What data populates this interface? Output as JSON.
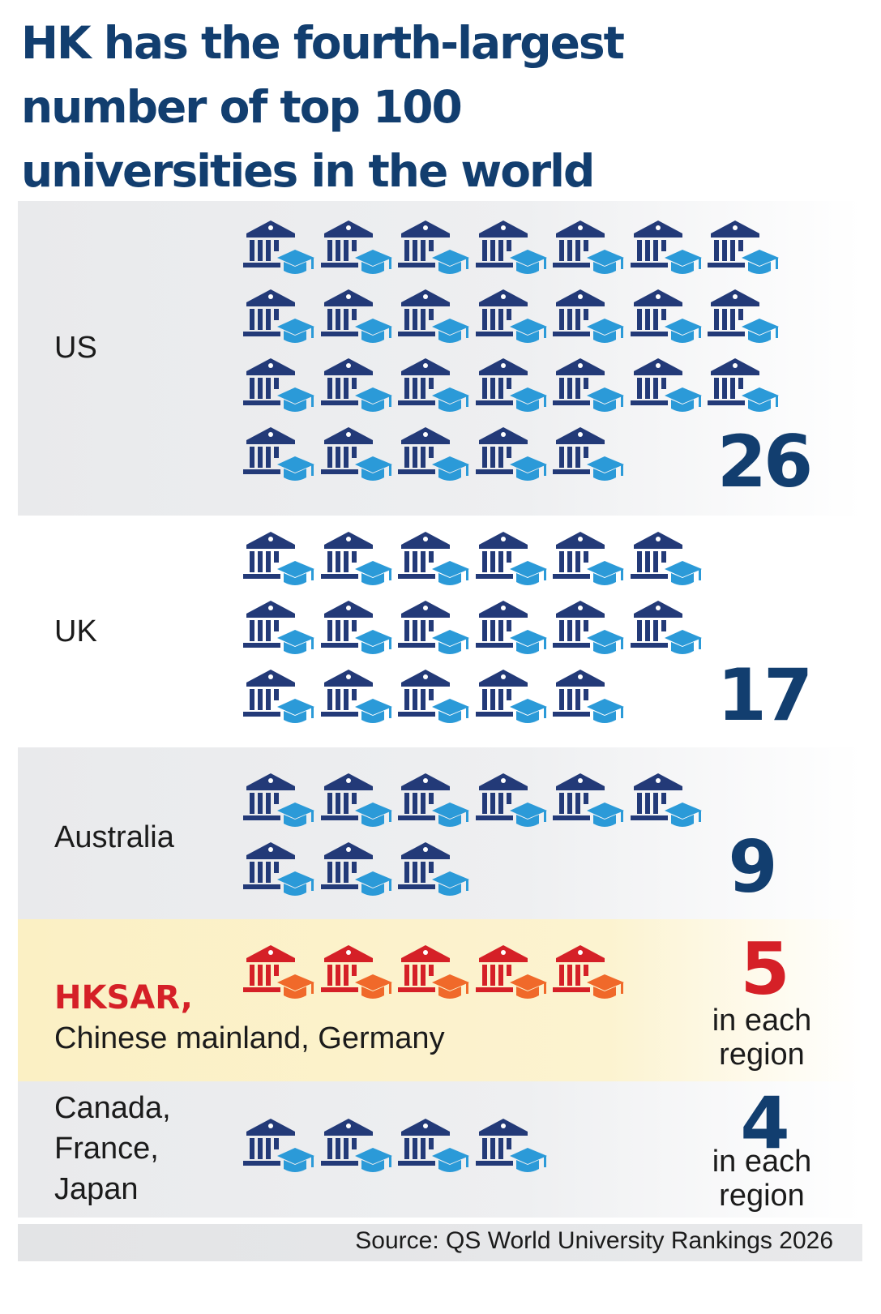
{
  "title_lines": [
    "HK has the fourth-largest",
    "number of top 100",
    "universities in the world"
  ],
  "source": "Source: QS World University Rankings 2026",
  "colors": {
    "title": "#123e6f",
    "building_blue": "#233a78",
    "cap_blue": "#2b9ad8",
    "building_red": "#d52027",
    "cap_orange": "#f0692a"
  },
  "icon_names": {
    "default": "university-cap-icon"
  },
  "chart_data": {
    "type": "pictogram",
    "title": "HK has the fourth-largest number of top 100 universities in the world",
    "unit": "universities in QS top 100",
    "categories": [
      "US",
      "UK",
      "Australia",
      "HKSAR, Chinese mainland, Germany",
      "Canada, France, Japan"
    ],
    "values": [
      26,
      17,
      9,
      5,
      4
    ],
    "highlight": "HKSAR, Chinese mainland, Germany"
  },
  "rows": [
    {
      "label_lines": [
        "US"
      ],
      "count": "26",
      "sub": [
        "",
        ""
      ],
      "icons": 26,
      "per_row": 7,
      "highlight": false
    },
    {
      "label_lines": [
        "UK"
      ],
      "count": "17",
      "sub": [
        "",
        ""
      ],
      "icons": 17,
      "per_row": 6,
      "highlight": false
    },
    {
      "label_lines": [
        "Australia"
      ],
      "count": "9",
      "sub": [
        "",
        ""
      ],
      "icons": 9,
      "per_row": 6,
      "highlight": false
    },
    {
      "label_highlight": "HKSAR,",
      "label_lines": [
        "Chinese mainland, Germany"
      ],
      "count": "5",
      "sub": [
        "in each",
        "region"
      ],
      "icons": 5,
      "per_row": 5,
      "highlight": true
    },
    {
      "label_lines": [
        "Canada,",
        "France,",
        "Japan"
      ],
      "count": "4",
      "sub": [
        "in each",
        "region"
      ],
      "icons": 4,
      "per_row": 4,
      "highlight": false
    }
  ]
}
